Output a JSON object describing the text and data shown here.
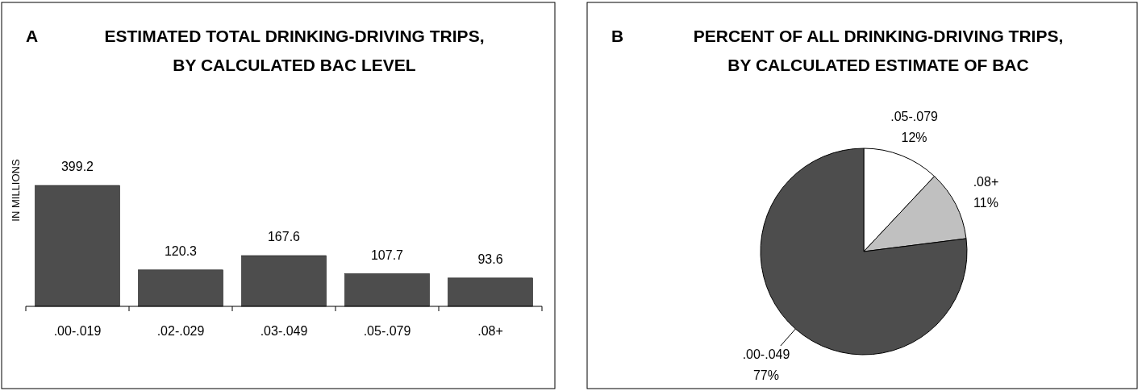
{
  "chart_data": [
    {
      "type": "bar",
      "title": "ESTIMATED TOTAL DRINKING-DRIVING TRIPS, BY CALCULATED BAC LEVEL",
      "annotations": [
        "A"
      ],
      "ylabel": "IN MILLIONS",
      "categories": [
        ".00-.019",
        ".02-.029",
        ".03-.049",
        ".05-.079",
        ".08+"
      ],
      "values": [
        399.2,
        120.3,
        167.6,
        107.7,
        93.6
      ],
      "color": "#4d4d4d",
      "data_labels": true
    },
    {
      "type": "pie",
      "title": "PERCENT OF ALL DRINKING-DRIVING TRIPS, BY CALCULATED ESTIMATE OF BAC",
      "annotations": [
        "B"
      ],
      "categories": [
        ".05-.079",
        ".08+",
        ".00-.049"
      ],
      "values": [
        12,
        11,
        77
      ],
      "colors": [
        "#ffffff",
        "#c0c0c0",
        "#4d4d4d"
      ],
      "value_labels": [
        "12%",
        "11%",
        "77%"
      ]
    }
  ]
}
